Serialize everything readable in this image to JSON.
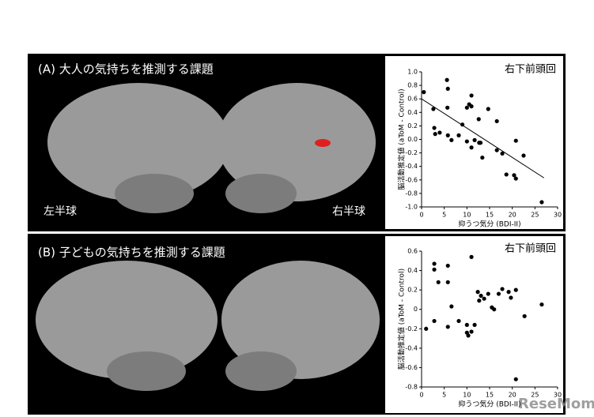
{
  "panels": [
    {
      "title": "(A) 大人の気持ちを推測する課題",
      "left_label": "左半球",
      "right_label": "右半球"
    },
    {
      "title": "(B) 子どもの気持ちを推測する課題"
    }
  ],
  "watermark": "ReseMom",
  "chart_data": [
    {
      "type": "scatter",
      "title": "右下前頭回",
      "x_label": "抑うつ気分 (BDI-II)",
      "y_label": "脳活動推定値 (aToM - Control)",
      "x": [
        0.5,
        2.6,
        2.8,
        3,
        4,
        5.6,
        5.8,
        5.7,
        5.8,
        6.6,
        8.2,
        9,
        10,
        10.5,
        11,
        11,
        10,
        11,
        11.7,
        12.7,
        13,
        12.6,
        13.4,
        14.7,
        16.6,
        16.6,
        17.8,
        18.7,
        20.4,
        20.8,
        22.5,
        20.8,
        26.5
      ],
      "y": [
        0.7,
        0.45,
        0.17,
        0.08,
        0.1,
        0.88,
        0.75,
        0.47,
        0.06,
        -0.01,
        0.06,
        0.22,
        0.47,
        0.52,
        0.65,
        0.49,
        -0.03,
        -0.12,
        -0.01,
        -0.05,
        -0.05,
        0.3,
        -0.27,
        0.45,
        0.27,
        -0.16,
        -0.21,
        -0.52,
        -0.53,
        -0.02,
        -0.24,
        -0.58,
        -0.93
      ],
      "trendline": {
        "x": [
          0,
          27
        ],
        "y": [
          0.6,
          -0.57
        ]
      },
      "color": "#000000",
      "xlim": [
        0,
        30
      ],
      "ylim": [
        -1.0,
        1.0
      ],
      "xticks": [
        0,
        5,
        10,
        15,
        20,
        25,
        30
      ],
      "yticks": [
        {
          "value": 1,
          "label": "1.0"
        },
        0.8,
        0.6,
        0.4,
        0.2,
        {
          "value": 0,
          "label": "0.0"
        },
        -0.2,
        -0.4,
        -0.6,
        -0.8,
        {
          "value": -1,
          "label": "-1.0"
        }
      ]
    },
    {
      "type": "scatter",
      "title": "右下前頭回",
      "x_label": "抑うつ気分 (BDI-II)",
      "y_label": "脳活動推定値 (aToM - Control)",
      "x": [
        1,
        2.8,
        2.8,
        3.7,
        2.8,
        5.8,
        5.8,
        5.8,
        6.6,
        8.2,
        10,
        10,
        10.3,
        11,
        11,
        11.7,
        12.4,
        12.7,
        13.1,
        13.8,
        14.7,
        15.5,
        16,
        17,
        17.8,
        19.2,
        19.7,
        20.8,
        20.8,
        22.7,
        26.5
      ],
      "y": [
        -0.2,
        0.47,
        0.41,
        0.28,
        -0.12,
        0.45,
        0.28,
        -0.18,
        0.03,
        -0.12,
        -0.16,
        -0.24,
        -0.27,
        0.54,
        -0.23,
        -0.16,
        0.18,
        0.09,
        0.14,
        0.11,
        0.16,
        0.02,
        0,
        0.16,
        0.21,
        0.18,
        0.12,
        0.2,
        -0.72,
        -0.07,
        0.05
      ],
      "color": "#000000",
      "xlim": [
        0,
        30
      ],
      "ylim": [
        -0.8,
        0.6
      ],
      "xticks": [
        0,
        5,
        10,
        15,
        20,
        25,
        30
      ],
      "yticks": [
        0.6,
        0.4,
        0.2,
        0,
        -0.2,
        -0.4,
        -0.6,
        -0.8
      ]
    }
  ]
}
